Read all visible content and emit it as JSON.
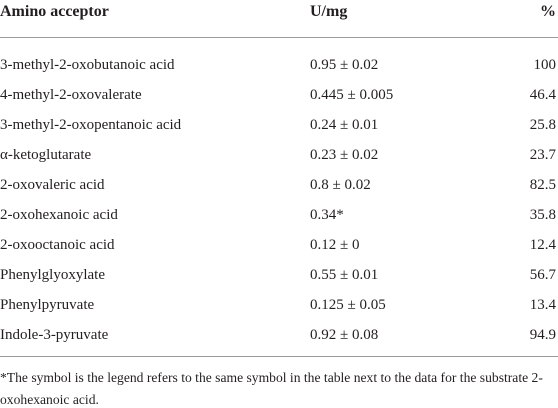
{
  "table": {
    "header": [
      "Amino acceptor",
      "U/mg",
      "%"
    ],
    "rows": [
      [
        "3-methyl-2-oxobutanoic acid",
        "0.95 ± 0.02",
        "100"
      ],
      [
        "4-methyl-2-oxovalerate",
        "0.445 ± 0.005",
        "46.4"
      ],
      [
        "3-methyl-2-oxopentanoic acid",
        "0.24 ± 0.01",
        "25.8"
      ],
      [
        "α-ketoglutarate",
        "0.23 ± 0.02",
        "23.7"
      ],
      [
        "2-oxovaleric acid",
        "0.8 ± 0.02",
        "82.5"
      ],
      [
        "2-oxohexanoic acid",
        "0.34*",
        "35.8"
      ],
      [
        "2-oxooctanoic acid",
        "0.12 ± 0",
        "12.4"
      ],
      [
        "Phenylglyoxylate",
        "0.55 ± 0.01",
        "56.7"
      ],
      [
        "Phenylpyruvate",
        "0.125 ± 0.05",
        "13.4"
      ],
      [
        "Indole-3-pyruvate",
        "0.92 ± 0.08",
        "94.9"
      ]
    ],
    "footnote": "*The symbol is the legend refers to the same symbol in the table next to the data for the substrate 2- oxohexanoic acid."
  }
}
